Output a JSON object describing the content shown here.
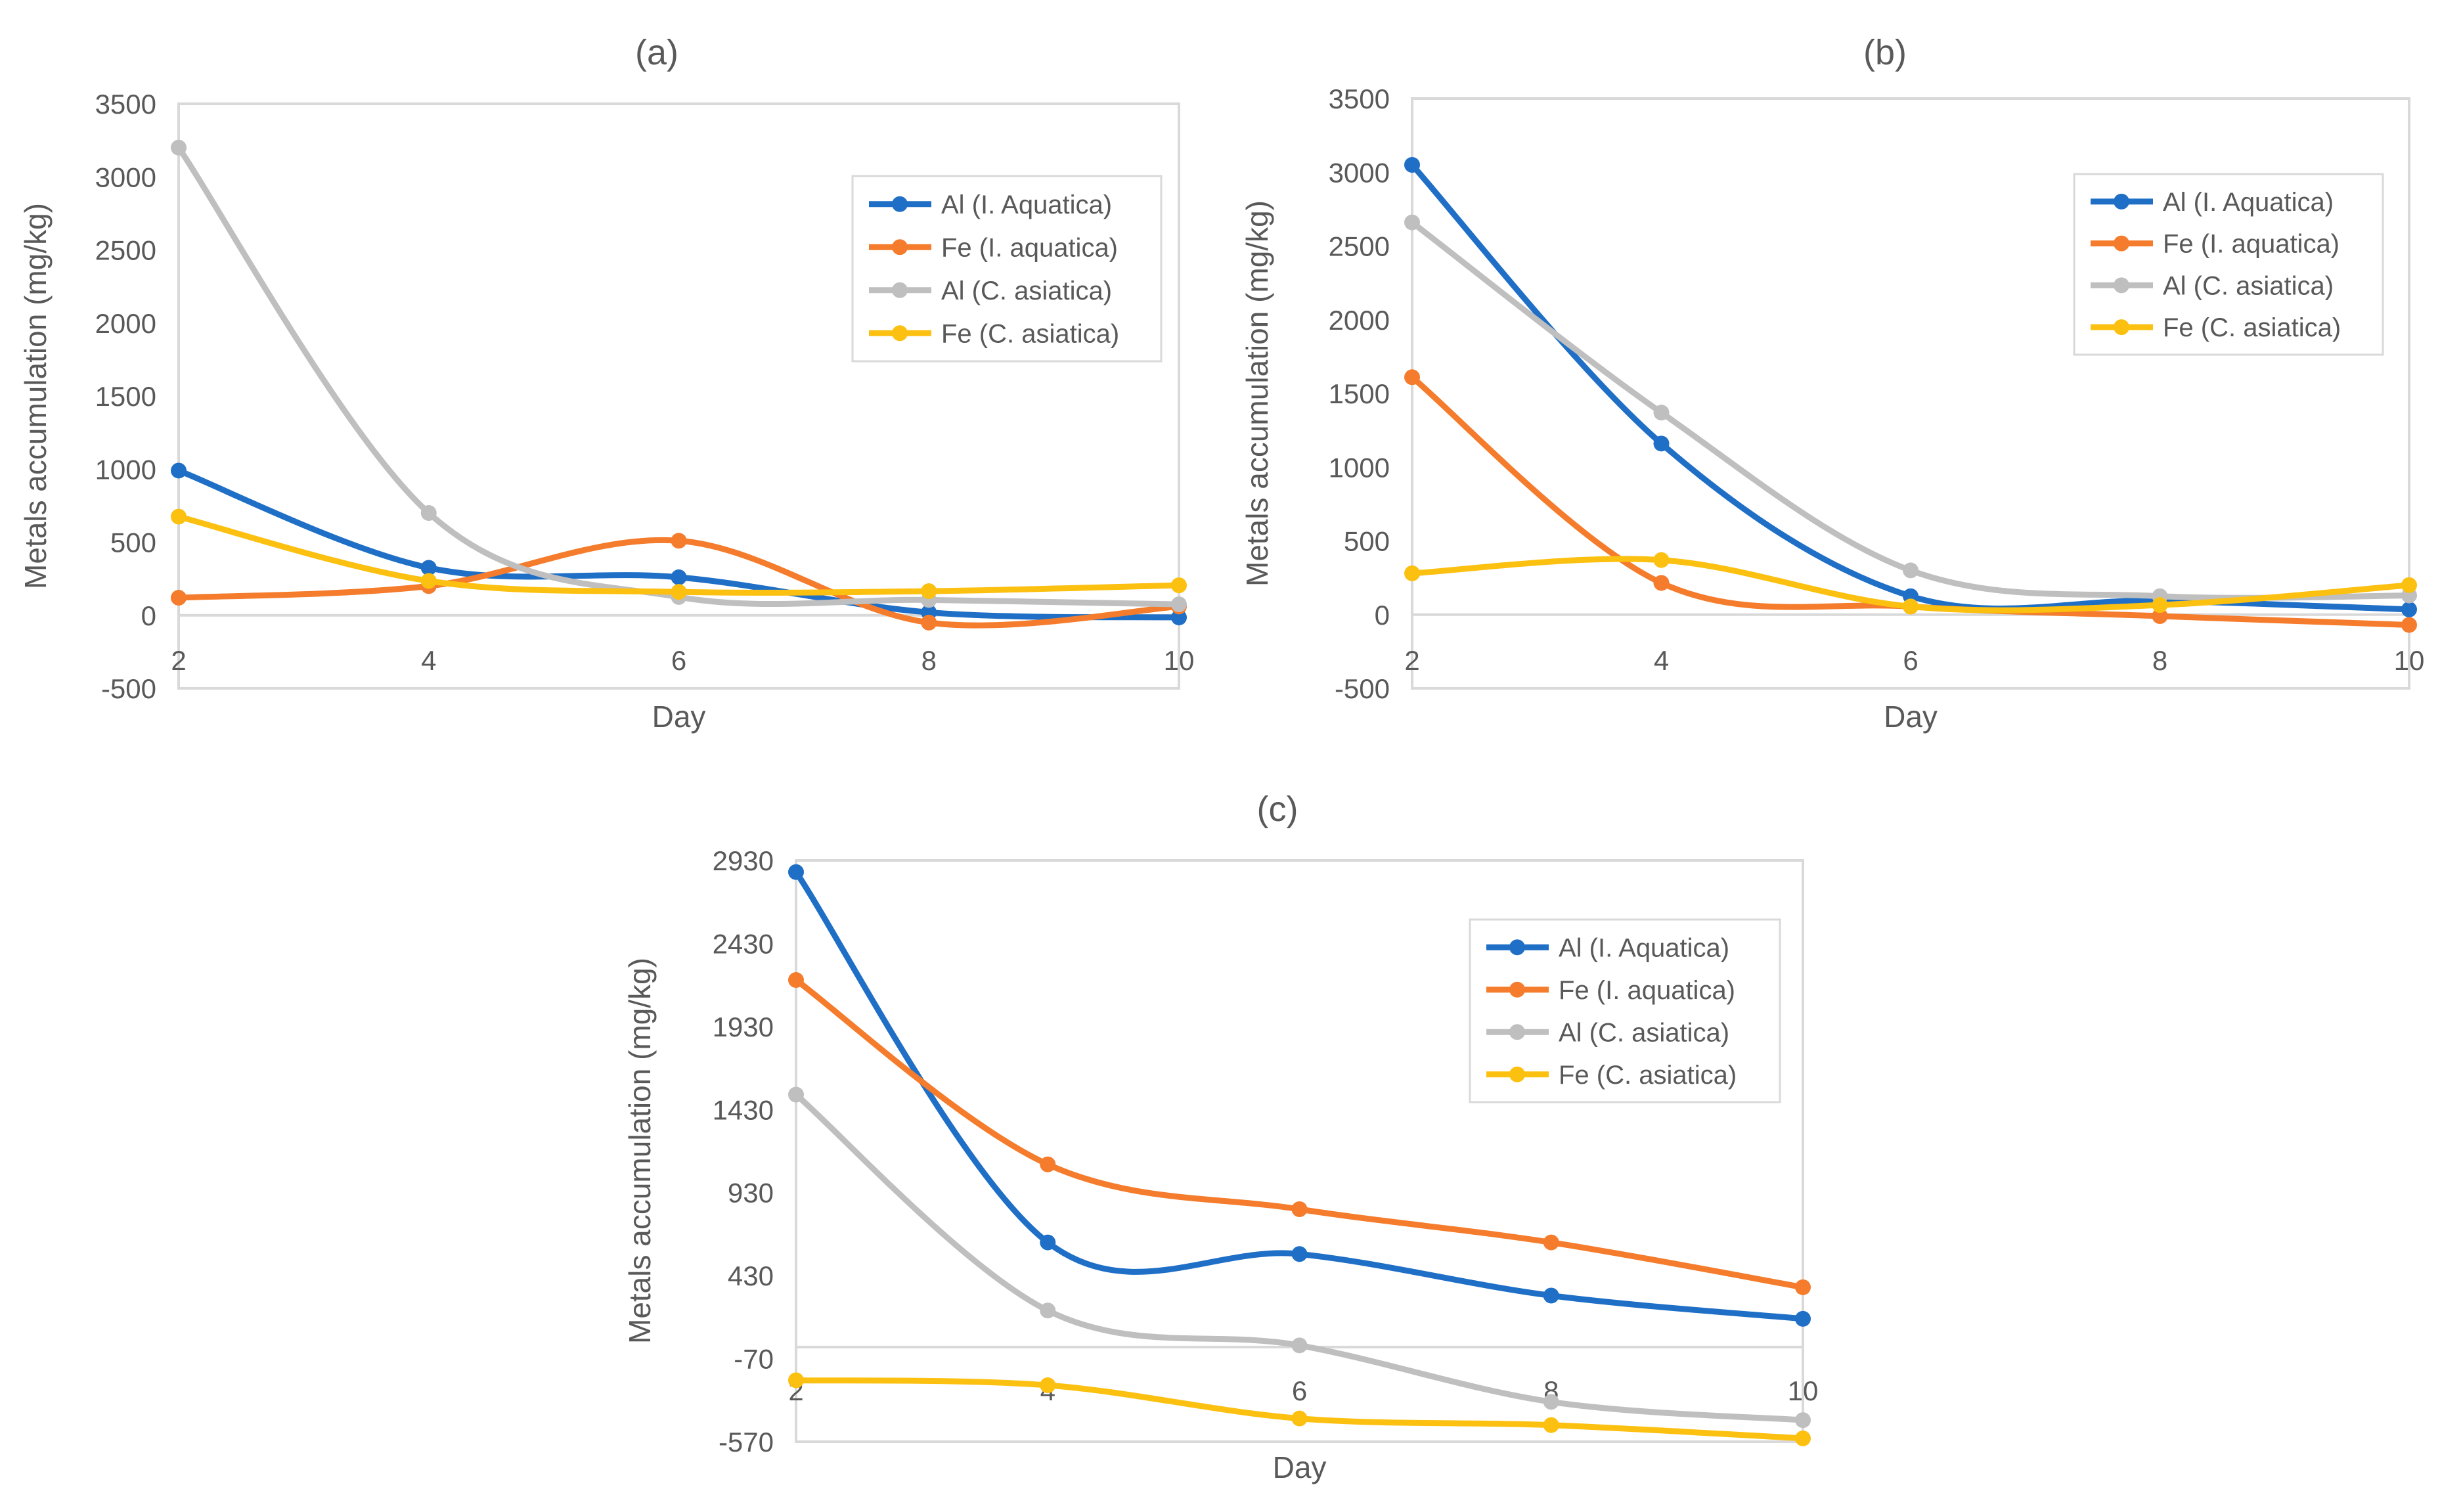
{
  "chart_data": [
    {
      "type": "line",
      "title": "(a)",
      "xlabel": "Day",
      "ylabel": "Metals accumulation (mg/kg)",
      "x": [
        2,
        4,
        6,
        8,
        10
      ],
      "xticks": [
        "2",
        "4",
        "6",
        "8",
        "10"
      ],
      "yticks": [
        "-500",
        "0",
        "500",
        "1000",
        "1500",
        "2000",
        "2500",
        "3000",
        "3500"
      ],
      "ylim": [
        -500,
        3500
      ],
      "legend_position": "top-right",
      "series": [
        {
          "name": "Al (I. Aquatica)",
          "color": "#1f6fc6",
          "values": [
            990,
            325,
            260,
            20,
            -15
          ]
        },
        {
          "name": "Fe (I. aquatica)",
          "color": "#f47c2c",
          "values": [
            120,
            200,
            510,
            -50,
            60
          ]
        },
        {
          "name": "Al (C. asiatica)",
          "color": "#bfbfbf",
          "values": [
            3200,
            700,
            125,
            105,
            75
          ]
        },
        {
          "name": "Fe (C. asiatica)",
          "color": "#fcc010",
          "values": [
            675,
            235,
            160,
            165,
            205
          ]
        }
      ]
    },
    {
      "type": "line",
      "title": "(b)",
      "xlabel": "Day",
      "ylabel": "Metals accumulation (mg/kg)",
      "x": [
        2,
        4,
        6,
        8,
        10
      ],
      "xticks": [
        "2",
        "4",
        "6",
        "8",
        "10"
      ],
      "yticks": [
        "-500",
        "0",
        "500",
        "1000",
        "1500",
        "2000",
        "2500",
        "3000",
        "3500"
      ],
      "ylim": [
        -500,
        3500
      ],
      "legend_position": "top-right",
      "series": [
        {
          "name": "Al (I. Aquatica)",
          "color": "#1f6fc6",
          "values": [
            3050,
            1160,
            125,
            95,
            35
          ]
        },
        {
          "name": "Fe (I. aquatica)",
          "color": "#f47c2c",
          "values": [
            1610,
            215,
            55,
            -10,
            -70
          ]
        },
        {
          "name": "Al (C. asiatica)",
          "color": "#bfbfbf",
          "values": [
            2660,
            1370,
            300,
            125,
            130
          ]
        },
        {
          "name": "Fe (C. asiatica)",
          "color": "#fcc010",
          "values": [
            280,
            370,
            55,
            65,
            200
          ]
        }
      ]
    },
    {
      "type": "line",
      "title": "(c)",
      "xlabel": "Day",
      "ylabel": "Metals accumulation (mg/kg)",
      "x": [
        2,
        4,
        6,
        8,
        10
      ],
      "xticks": [
        "2",
        "4",
        "6",
        "8",
        "10"
      ],
      "yticks": [
        "-570",
        "-70",
        "430",
        "930",
        "1430",
        "1930",
        "2430",
        "2930"
      ],
      "ylim": [
        -570,
        2930
      ],
      "legend_position": "top-right",
      "series": [
        {
          "name": "Al (I. Aquatica)",
          "color": "#1f6fc6",
          "values": [
            2860,
            630,
            560,
            310,
            170
          ]
        },
        {
          "name": "Fe (I. aquatica)",
          "color": "#f47c2c",
          "values": [
            2210,
            1100,
            830,
            630,
            360
          ]
        },
        {
          "name": "Al (C. asiatica)",
          "color": "#bfbfbf",
          "values": [
            1520,
            220,
            10,
            -330,
            -440
          ]
        },
        {
          "name": "Fe (C. asiatica)",
          "color": "#fcc010",
          "values": [
            -200,
            -230,
            -430,
            -470,
            -550
          ]
        }
      ]
    }
  ]
}
